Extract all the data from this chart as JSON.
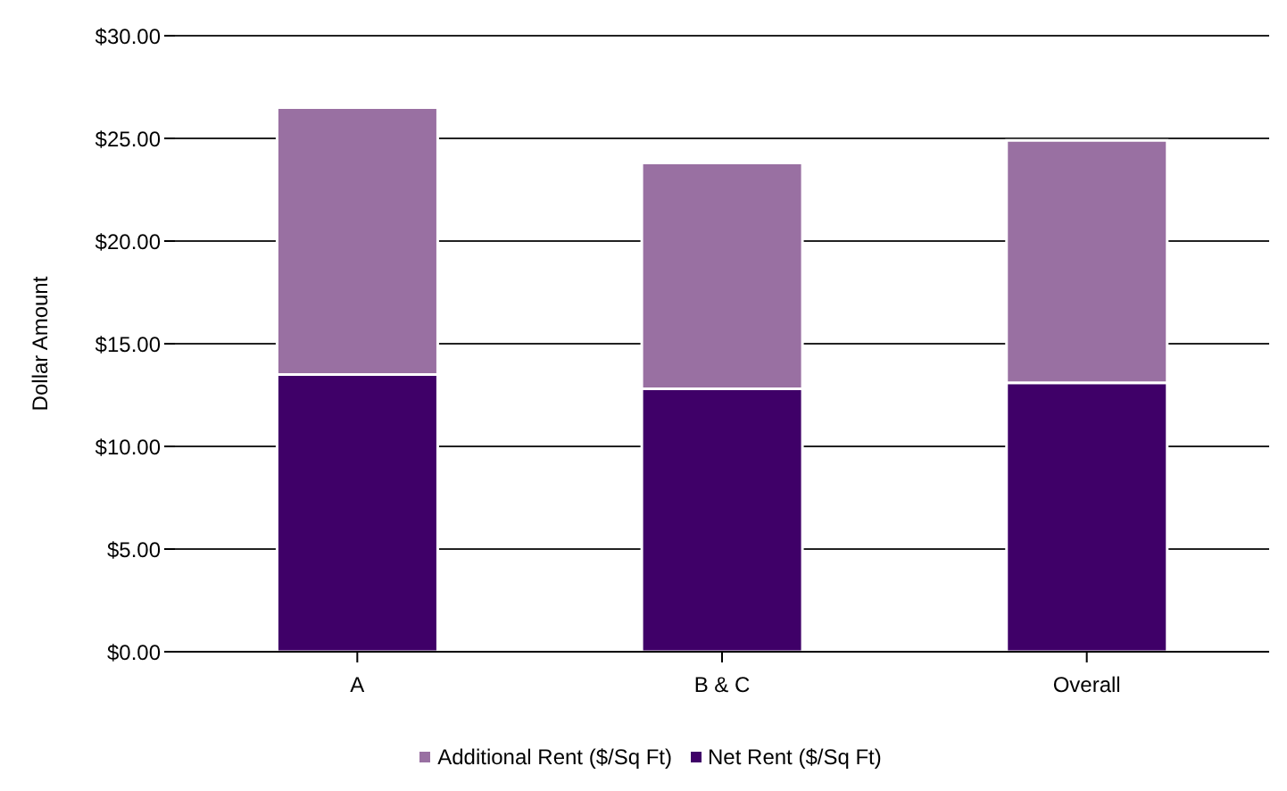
{
  "chart_data": {
    "type": "bar",
    "stacked": true,
    "ylabel": "Dollar Amount",
    "categories": [
      "A",
      "B & C",
      "Overall"
    ],
    "series": [
      {
        "name": "Net Rent ($/Sq Ft)",
        "color": "#3f0068",
        "values": [
          13.5,
          12.8,
          13.1
        ]
      },
      {
        "name": "Additional Rent ($/Sq Ft)",
        "color": "#9970a2",
        "values": [
          13.0,
          11.0,
          11.8
        ]
      }
    ],
    "ylim": [
      0,
      30
    ],
    "yticks": [
      {
        "value": 0,
        "label": "$0.00"
      },
      {
        "value": 5,
        "label": "$5.00"
      },
      {
        "value": 10,
        "label": "$10.00"
      },
      {
        "value": 15,
        "label": "$15.00"
      },
      {
        "value": 20,
        "label": "$20.00"
      },
      {
        "value": 25,
        "label": "$25.00"
      },
      {
        "value": 30,
        "label": "$30.00"
      }
    ],
    "grid": "y",
    "legend": "bottom"
  }
}
